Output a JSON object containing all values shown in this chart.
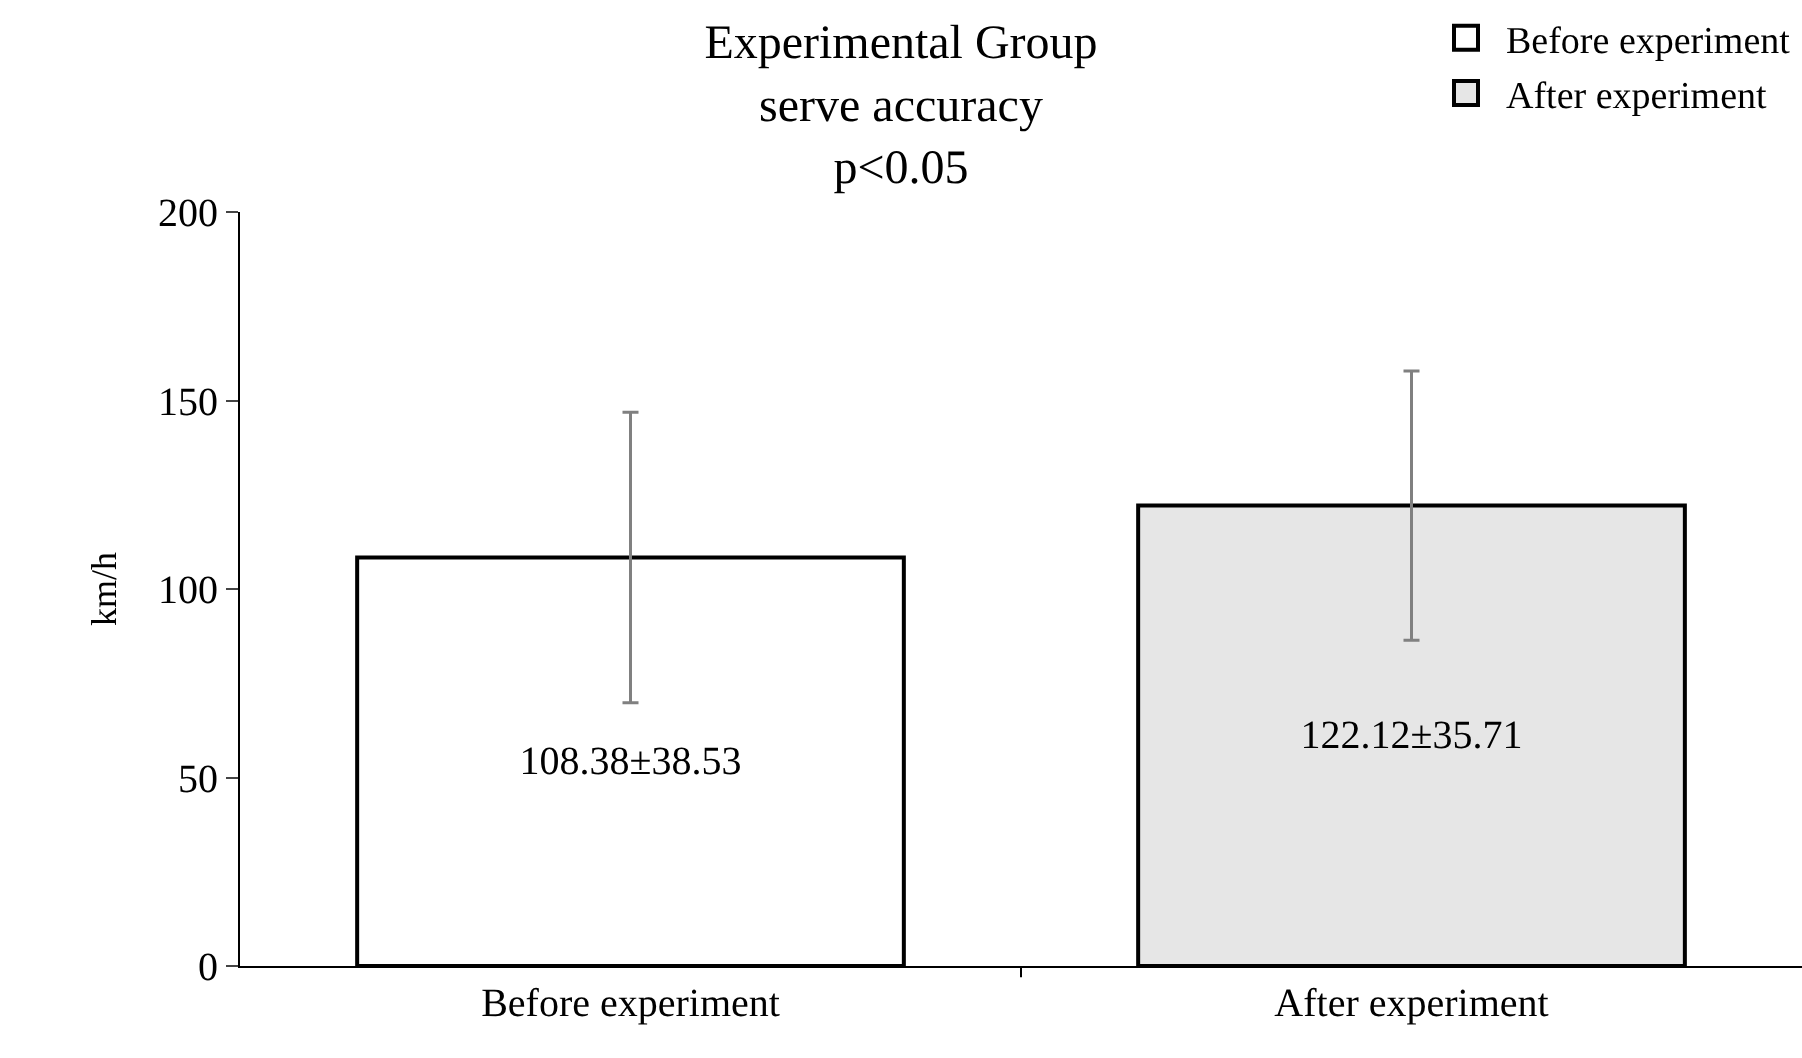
{
  "chart_data": {
    "type": "bar",
    "title": "Experimental Group\nserve accuracy\np<0.05",
    "ylabel": "km/h",
    "categories": [
      "Before experiment",
      "After experiment"
    ],
    "series": [
      {
        "name": "Before experiment",
        "color": "#ffffff",
        "values": [
          108.38,
          null
        ],
        "errors": [
          38.53,
          null
        ],
        "value_labels": [
          "108.38±38.53",
          null
        ]
      },
      {
        "name": "After experiment",
        "color": "#e6e6e6",
        "values": [
          null,
          122.12
        ],
        "errors": [
          null,
          35.71
        ],
        "value_labels": [
          null,
          "122.12±35.71"
        ]
      }
    ],
    "ylim": [
      0,
      200
    ],
    "yticks": [
      0,
      50,
      100,
      150,
      200
    ],
    "legend": "top right"
  }
}
